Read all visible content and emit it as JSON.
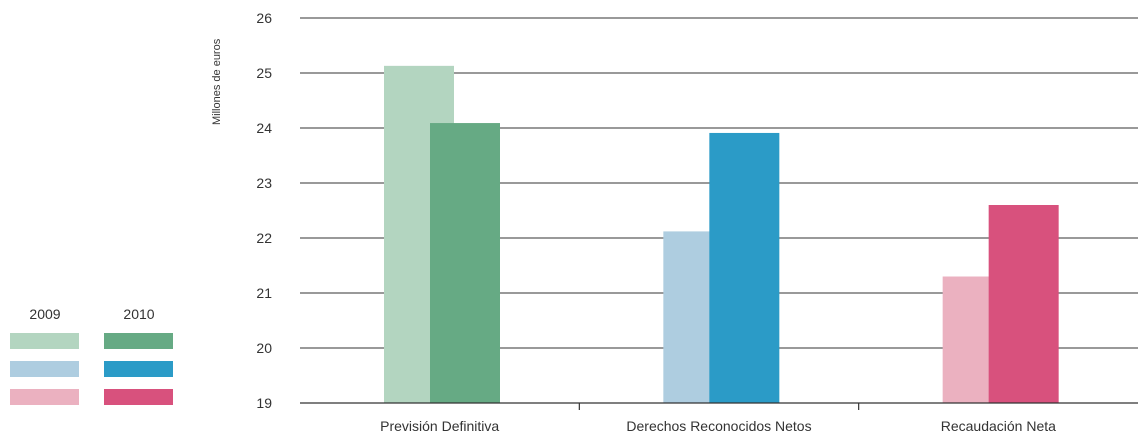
{
  "chart_data": {
    "type": "bar",
    "ylabel": "Millones de euros",
    "ylim": [
      19,
      26
    ],
    "yticks": [
      19,
      20,
      21,
      22,
      23,
      24,
      25,
      26
    ],
    "grid": true,
    "legend_position": "left",
    "categories": [
      "Previsión Definitiva",
      "Derechos Reconocidos Netos",
      "Recaudación Neta"
    ],
    "series": [
      {
        "name": "2009",
        "values": [
          25.13,
          22.12,
          21.3
        ]
      },
      {
        "name": "2010",
        "values": [
          24.09,
          23.91,
          22.6
        ]
      }
    ],
    "colors": {
      "2009": [
        "#b3d5c0",
        "#aecde0",
        "#ebb1c0"
      ],
      "2010": [
        "#66aa84",
        "#2b9bc7",
        "#d8517d"
      ]
    },
    "axis_color": "#333333",
    "grid_color": "#333333"
  }
}
